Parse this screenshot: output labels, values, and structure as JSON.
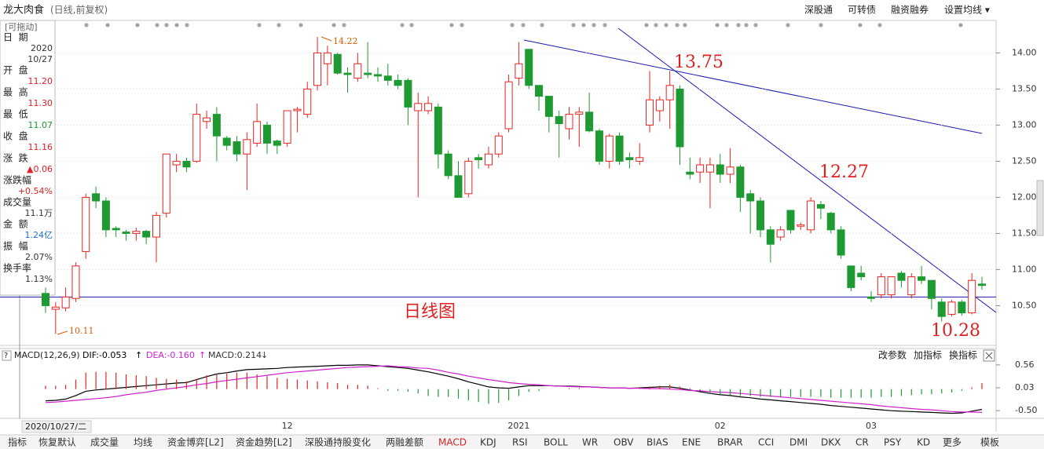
{
  "header": {
    "stock": "龙大肉食",
    "mode": "(日线,前复权)",
    "buttons": [
      "深股通",
      "可转债",
      "融资融券",
      "设置均线 ▾"
    ]
  },
  "info_panel": {
    "drag_hint": "[可拖动]",
    "rows": [
      {
        "label": "日  期",
        "values": [
          "2020",
          "10/27"
        ],
        "color": "#333333"
      },
      {
        "label": "开  盘",
        "values": [
          "11.20"
        ],
        "color": "#e02020"
      },
      {
        "label": "最  高",
        "values": [
          "11.30"
        ],
        "color": "#e02020"
      },
      {
        "label": "最  低",
        "values": [
          "11.07"
        ],
        "color": "#1a9a2a"
      },
      {
        "label": "收  盘",
        "values": [
          "11.16"
        ],
        "color": "#e02020"
      },
      {
        "label": "涨  跌",
        "values": [
          "▲0.06"
        ],
        "color": "#e02020"
      },
      {
        "label": "涨跌幅",
        "values": [
          "+0.54%"
        ],
        "color": "#e02020"
      },
      {
        "label": "成交量",
        "values": [
          "11.1万"
        ],
        "color": "#333333"
      },
      {
        "label": "金  额",
        "values": [
          "1.24亿"
        ],
        "color": "#1a6fd0"
      },
      {
        "label": "振  幅",
        "values": [
          "2.07%"
        ],
        "color": "#333333"
      },
      {
        "label": "换手率",
        "values": [
          "1.13%"
        ],
        "color": "#333333"
      }
    ]
  },
  "cursor_label": "2020/10/27/二",
  "chart_data": [
    {
      "type": "candlestick",
      "title": "日线图",
      "categories": [
        null,
        null,
        null,
        null,
        null,
        null,
        null,
        null,
        null,
        null,
        null,
        null,
        null,
        null,
        null,
        null,
        null,
        null,
        null,
        null,
        null,
        null,
        null,
        null,
        "12",
        null,
        null,
        null,
        null,
        null,
        null,
        null,
        null,
        null,
        null,
        null,
        null,
        null,
        null,
        null,
        null,
        null,
        null,
        null,
        null,
        null,
        null,
        "2021",
        null,
        null,
        null,
        null,
        null,
        null,
        null,
        null,
        null,
        null,
        null,
        null,
        null,
        null,
        null,
        null,
        null,
        null,
        null,
        "02",
        null,
        null,
        null,
        null,
        null,
        null,
        null,
        null,
        null,
        null,
        null,
        null,
        null,
        null,
        "03",
        null,
        null,
        null,
        null,
        null,
        null,
        null,
        null,
        null,
        null,
        null
      ],
      "open": [
        10.67,
        10.45,
        10.47,
        10.6,
        11.25,
        12.05,
        11.95,
        11.57,
        11.52,
        11.5,
        11.53,
        11.45,
        11.78,
        12.45,
        12.5,
        12.5,
        13.05,
        13.15,
        12.82,
        12.77,
        12.6,
        12.75,
        13.0,
        12.78,
        12.75,
        13.2,
        13.15,
        13.55,
        13.85,
        13.98,
        13.72,
        13.65,
        13.72,
        13.7,
        13.68,
        13.62,
        13.62,
        13.2,
        13.2,
        13.25,
        12.6,
        12.3,
        12.05,
        12.55,
        12.45,
        12.6,
        12.95,
        13.65,
        14.05,
        13.55,
        13.4,
        13.12,
        12.95,
        13.15,
        13.18,
        12.92,
        12.5,
        12.85,
        12.55,
        12.5,
        13.0,
        13.2,
        13.35,
        13.5,
        12.35,
        12.35,
        12.35,
        12.45,
        12.32,
        12.42,
        12.05,
        11.95,
        11.55,
        11.45,
        11.82,
        11.6,
        11.55,
        11.9,
        11.78,
        11.55,
        11.05,
        10.95,
        10.62,
        10.65,
        10.65,
        10.95,
        10.65,
        10.9,
        10.85,
        10.55,
        10.38,
        10.55,
        10.4,
        10.8
      ],
      "high": [
        10.75,
        10.55,
        10.75,
        11.1,
        12.05,
        12.15,
        12.0,
        11.6,
        11.55,
        11.58,
        11.55,
        11.8,
        12.6,
        12.6,
        12.55,
        13.3,
        13.2,
        13.25,
        12.85,
        12.85,
        12.9,
        13.3,
        13.05,
        12.8,
        13.2,
        13.25,
        13.6,
        14.22,
        14.1,
        14.0,
        13.8,
        14.0,
        14.15,
        13.8,
        13.85,
        13.7,
        13.65,
        13.45,
        13.4,
        13.3,
        12.65,
        12.5,
        12.55,
        12.6,
        12.7,
        12.9,
        13.7,
        14.15,
        14.05,
        13.55,
        13.4,
        13.2,
        13.25,
        13.25,
        13.45,
        12.95,
        12.88,
        12.9,
        12.62,
        12.75,
        13.75,
        13.4,
        13.75,
        13.55,
        12.55,
        12.55,
        12.55,
        12.6,
        12.68,
        12.45,
        12.1,
        12.0,
        11.6,
        11.6,
        11.82,
        11.65,
        12.0,
        11.95,
        11.8,
        11.6,
        11.05,
        11.05,
        10.7,
        10.95,
        10.9,
        10.98,
        10.95,
        11.05,
        10.85,
        10.6,
        10.58,
        10.58,
        10.95,
        10.9
      ],
      "low": [
        10.4,
        10.11,
        10.42,
        10.55,
        11.15,
        11.85,
        11.45,
        11.45,
        11.4,
        11.4,
        11.35,
        11.1,
        11.72,
        12.35,
        12.35,
        12.48,
        12.95,
        12.5,
        12.65,
        12.5,
        12.1,
        12.7,
        12.6,
        12.6,
        12.7,
        12.9,
        13.1,
        13.48,
        13.55,
        13.7,
        13.45,
        13.6,
        13.65,
        13.6,
        13.55,
        13.5,
        13.0,
        12.0,
        13.15,
        12.4,
        12.25,
        12.0,
        12.0,
        12.4,
        12.4,
        12.55,
        12.9,
        13.55,
        13.5,
        13.2,
        12.9,
        12.55,
        12.8,
        12.7,
        12.9,
        12.45,
        12.4,
        12.45,
        12.4,
        12.45,
        12.9,
        13.05,
        12.95,
        12.45,
        12.25,
        12.2,
        11.85,
        12.2,
        12.2,
        11.8,
        11.5,
        11.45,
        11.1,
        11.4,
        11.5,
        11.55,
        11.5,
        11.7,
        11.5,
        11.15,
        10.7,
        10.85,
        10.55,
        10.6,
        10.6,
        10.75,
        10.6,
        10.8,
        10.45,
        10.28,
        10.35,
        10.36,
        10.38,
        10.72
      ],
      "close": [
        10.5,
        10.48,
        10.62,
        11.05,
        12.0,
        11.95,
        11.55,
        11.55,
        11.5,
        11.53,
        11.45,
        11.75,
        12.6,
        12.5,
        12.42,
        13.15,
        13.1,
        12.85,
        12.72,
        12.6,
        12.8,
        13.05,
        12.75,
        12.72,
        13.2,
        13.22,
        13.5,
        14.0,
        14.0,
        13.72,
        13.7,
        13.85,
        13.7,
        13.68,
        13.62,
        13.55,
        13.25,
        13.3,
        13.3,
        12.6,
        12.3,
        12.0,
        12.5,
        12.52,
        12.6,
        12.85,
        13.6,
        13.85,
        13.55,
        13.4,
        13.12,
        13.02,
        13.15,
        13.18,
        12.92,
        12.5,
        12.85,
        12.5,
        12.52,
        12.55,
        13.35,
        13.35,
        13.55,
        12.7,
        12.32,
        12.45,
        12.45,
        12.32,
        12.42,
        12.0,
        11.95,
        11.55,
        11.35,
        11.55,
        11.55,
        11.62,
        11.95,
        11.85,
        11.55,
        11.2,
        10.75,
        10.9,
        10.6,
        10.9,
        10.9,
        10.85,
        10.9,
        10.85,
        10.6,
        10.35,
        10.55,
        10.4,
        10.85,
        10.78
      ],
      "up_color": "#e8231f",
      "down_color": "#1f9a33",
      "up_hollow": true,
      "ylim": [
        9.95,
        14.45
      ],
      "yticks": [
        {
          "value": 10.5,
          "label": "10.50"
        },
        {
          "value": 11,
          "label": "11.00"
        },
        {
          "value": 11.5,
          "label": "11.50"
        },
        {
          "value": 12,
          "label": "12.00"
        },
        {
          "value": 12.5,
          "label": "12.50"
        },
        {
          "value": 13,
          "label": "13.00"
        },
        {
          "value": 13.5,
          "label": "13.50"
        },
        {
          "value": 14,
          "label": "14.00"
        }
      ],
      "grid": true,
      "hline": 10.62,
      "hline_color": "#1a1aa0",
      "annotations": [
        {
          "text": "13.75"
        },
        {
          "text": "12.27"
        },
        {
          "text": "10.28"
        },
        {
          "text": "14.22"
        },
        {
          "text": "10.11"
        }
      ]
    },
    {
      "type": "macd",
      "title": "MACD(12,26,9)",
      "series": [
        {
          "name": "DIF:-0.053",
          "arrow": "↑",
          "color": "#000000",
          "type": "line",
          "values": [
            -0.27,
            -0.26,
            -0.23,
            -0.15,
            -0.05,
            -0.02,
            0.0,
            0.02,
            0.04,
            0.06,
            0.08,
            0.1,
            0.12,
            0.14,
            0.15,
            0.22,
            0.29,
            0.35,
            0.38,
            0.42,
            0.45,
            0.46,
            0.47,
            0.48,
            0.5,
            0.51,
            0.52,
            0.53,
            0.54,
            0.55,
            0.55,
            0.56,
            0.56,
            0.54,
            0.52,
            0.5,
            0.48,
            0.44,
            0.4,
            0.35,
            0.3,
            0.24,
            0.17,
            0.11,
            0.05,
            0.03,
            0.02,
            0.05,
            0.08,
            0.08,
            0.08,
            0.07,
            0.07,
            0.06,
            0.05,
            0.04,
            0.03,
            0.03,
            0.02,
            0.03,
            0.04,
            0.05,
            0.05,
            0.02,
            -0.02,
            -0.06,
            -0.1,
            -0.13,
            -0.15,
            -0.18,
            -0.2,
            -0.23,
            -0.25,
            -0.27,
            -0.29,
            -0.31,
            -0.33,
            -0.35,
            -0.38,
            -0.4,
            -0.42,
            -0.44,
            -0.46,
            -0.48,
            -0.5,
            -0.51,
            -0.52,
            -0.53,
            -0.54,
            -0.55,
            -0.56,
            -0.55,
            -0.51,
            -0.47
          ]
        },
        {
          "name": "DEA:-0.160",
          "arrow": "↑",
          "color": "#d020d0",
          "type": "line",
          "values": [
            -0.31,
            -0.3,
            -0.28,
            -0.26,
            -0.24,
            -0.22,
            -0.2,
            -0.17,
            -0.13,
            -0.1,
            -0.07,
            -0.03,
            0.0,
            0.03,
            0.06,
            0.1,
            0.13,
            0.17,
            0.2,
            0.23,
            0.26,
            0.29,
            0.32,
            0.35,
            0.38,
            0.4,
            0.42,
            0.44,
            0.46,
            0.48,
            0.5,
            0.51,
            0.52,
            0.53,
            0.54,
            0.52,
            0.51,
            0.49,
            0.48,
            0.44,
            0.39,
            0.35,
            0.3,
            0.26,
            0.22,
            0.19,
            0.15,
            0.13,
            0.11,
            0.1,
            0.08,
            0.07,
            0.06,
            0.05,
            0.05,
            0.04,
            0.03,
            0.03,
            0.02,
            0.02,
            0.01,
            0.01,
            0.0,
            -0.01,
            -0.03,
            -0.04,
            -0.06,
            -0.07,
            -0.08,
            -0.1,
            -0.12,
            -0.14,
            -0.16,
            -0.18,
            -0.2,
            -0.22,
            -0.24,
            -0.26,
            -0.28,
            -0.3,
            -0.32,
            -0.34,
            -0.36,
            -0.39,
            -0.41,
            -0.43,
            -0.45,
            -0.47,
            -0.48,
            -0.5,
            -0.52,
            -0.53,
            -0.53,
            -0.54
          ]
        },
        {
          "name": "MACD:0.214",
          "arrow": "↓",
          "color": "#333333",
          "type": "bar",
          "up_color": "#e8231f",
          "down_color": "#1f9a33",
          "values": [
            0.08,
            0.08,
            0.1,
            0.22,
            0.38,
            0.4,
            0.4,
            0.38,
            0.34,
            0.32,
            0.3,
            0.26,
            0.24,
            0.22,
            0.18,
            0.24,
            0.32,
            0.36,
            0.36,
            0.38,
            0.38,
            0.34,
            0.3,
            0.26,
            0.24,
            0.22,
            0.2,
            0.18,
            0.16,
            0.14,
            0.1,
            0.1,
            0.08,
            0.02,
            -0.04,
            -0.04,
            -0.06,
            -0.1,
            -0.16,
            -0.18,
            -0.18,
            -0.22,
            -0.26,
            -0.3,
            -0.34,
            -0.32,
            -0.26,
            -0.16,
            -0.06,
            -0.04,
            0.0,
            0.0,
            0.02,
            0.02,
            0.0,
            0.0,
            0.0,
            0.0,
            0.0,
            0.02,
            0.06,
            0.08,
            0.1,
            0.06,
            0.02,
            -0.04,
            -0.08,
            -0.12,
            -0.14,
            -0.16,
            -0.16,
            -0.18,
            -0.18,
            -0.18,
            -0.18,
            -0.18,
            -0.18,
            -0.18,
            -0.2,
            -0.2,
            -0.2,
            -0.2,
            -0.2,
            -0.18,
            -0.18,
            -0.16,
            -0.14,
            -0.12,
            -0.12,
            -0.1,
            -0.08,
            -0.04,
            0.04,
            0.14
          ]
        }
      ],
      "ylim": [
        -0.66,
        0.94
      ],
      "yticks": [
        {
          "value": -0.5,
          "label": "-0.50"
        },
        0.03,
        0.56
      ],
      "buttons": [
        "改参数",
        "加指标",
        "换指标"
      ]
    }
  ],
  "bottom_tabs": {
    "items": [
      "指标",
      "恢复默认",
      "成交量",
      "均线",
      "资金博弈[L2]",
      "资金趋势[L2]",
      "深股通持股变化",
      "两融差额",
      "MACD",
      "KDJ",
      "RSI",
      "BOLL",
      "WR",
      "OBV",
      "BIAS",
      "ENE",
      "BRAR",
      "CCI",
      "DMI",
      "DKX",
      "CR",
      "PSY",
      "KD",
      "更多",
      "模板"
    ],
    "active_index": 8
  }
}
